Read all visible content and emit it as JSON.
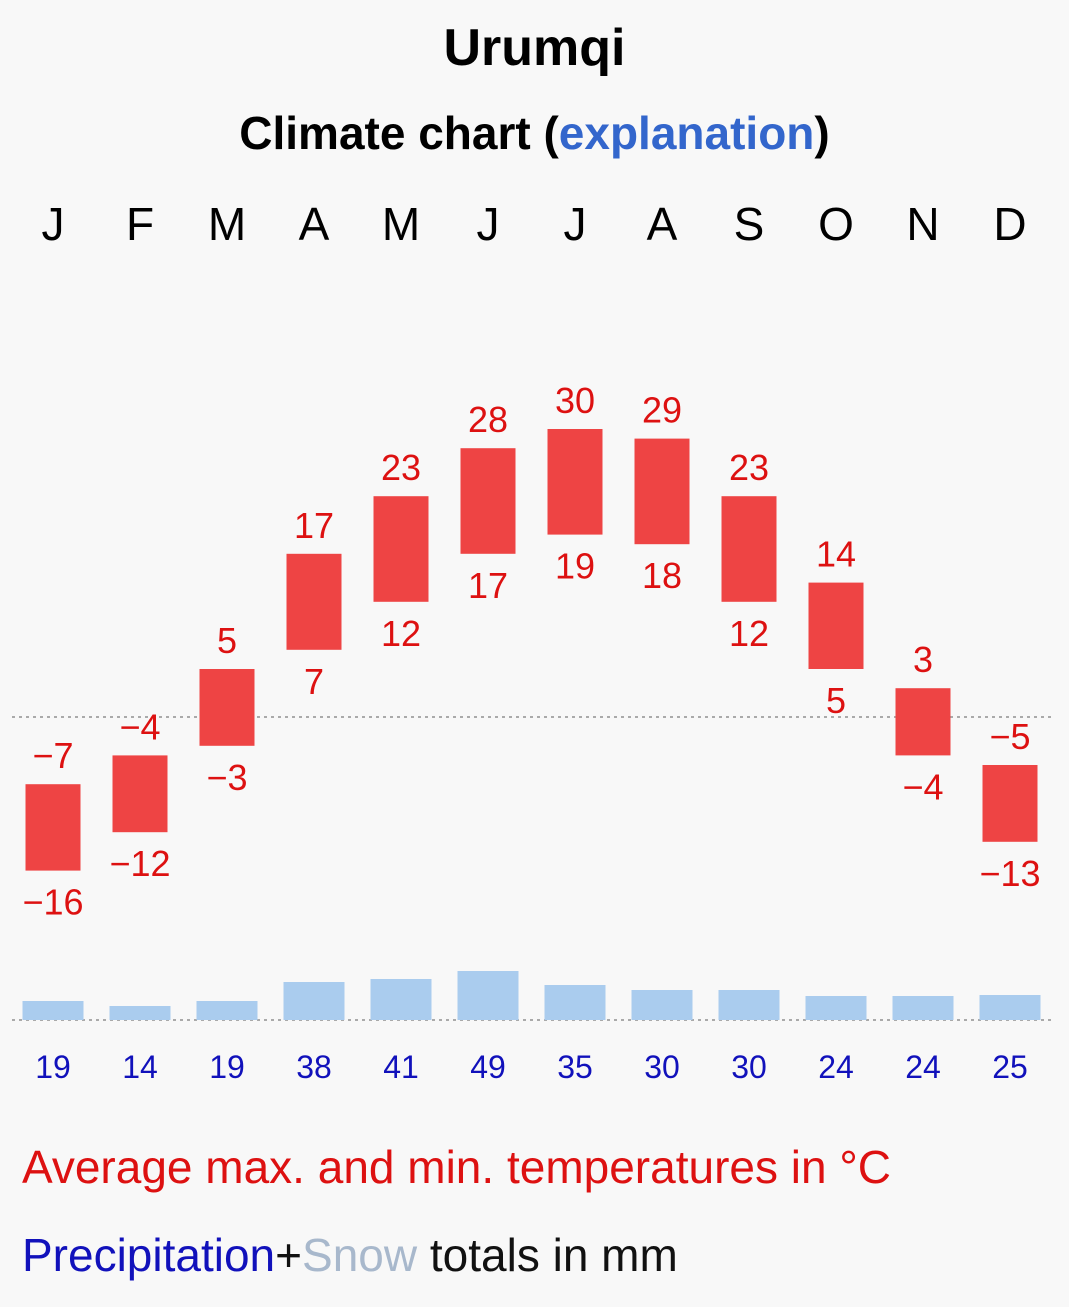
{
  "header": {
    "title": "Urumqi",
    "subtitle_prefix": "Climate chart (",
    "subtitle_link": "explanation",
    "subtitle_suffix": ")"
  },
  "chart_data": {
    "type": "bar",
    "title": "Urumqi",
    "subtitle": "Climate chart (explanation)",
    "categories": [
      "J",
      "F",
      "M",
      "A",
      "M",
      "J",
      "J",
      "A",
      "S",
      "O",
      "N",
      "D"
    ],
    "series": [
      {
        "name": "Average max. temperature (°C)",
        "values": [
          -7,
          -4,
          5,
          17,
          23,
          28,
          30,
          29,
          23,
          14,
          3,
          -5
        ]
      },
      {
        "name": "Average min. temperature (°C)",
        "values": [
          -16,
          -12,
          -3,
          7,
          12,
          17,
          19,
          18,
          12,
          5,
          -4,
          -13
        ]
      },
      {
        "name": "Precipitation (mm)",
        "values": [
          19,
          14,
          19,
          38,
          41,
          49,
          35,
          30,
          30,
          24,
          24,
          25
        ]
      }
    ],
    "temperature_unit": "°C",
    "precipitation_unit": "mm",
    "colors": {
      "temp_bar": "#ee4444",
      "temp_label": "#dd1111",
      "precip_bar": "#aaccee",
      "precip_label": "#1111bb",
      "baseline": "#aaaaaa"
    }
  },
  "legend": {
    "temp_text": "Average max. and min. temperatures in °C",
    "precip_word": "Precipitation",
    "plus": "+",
    "snow_word": "Snow",
    "totals_text": " totals in mm"
  }
}
